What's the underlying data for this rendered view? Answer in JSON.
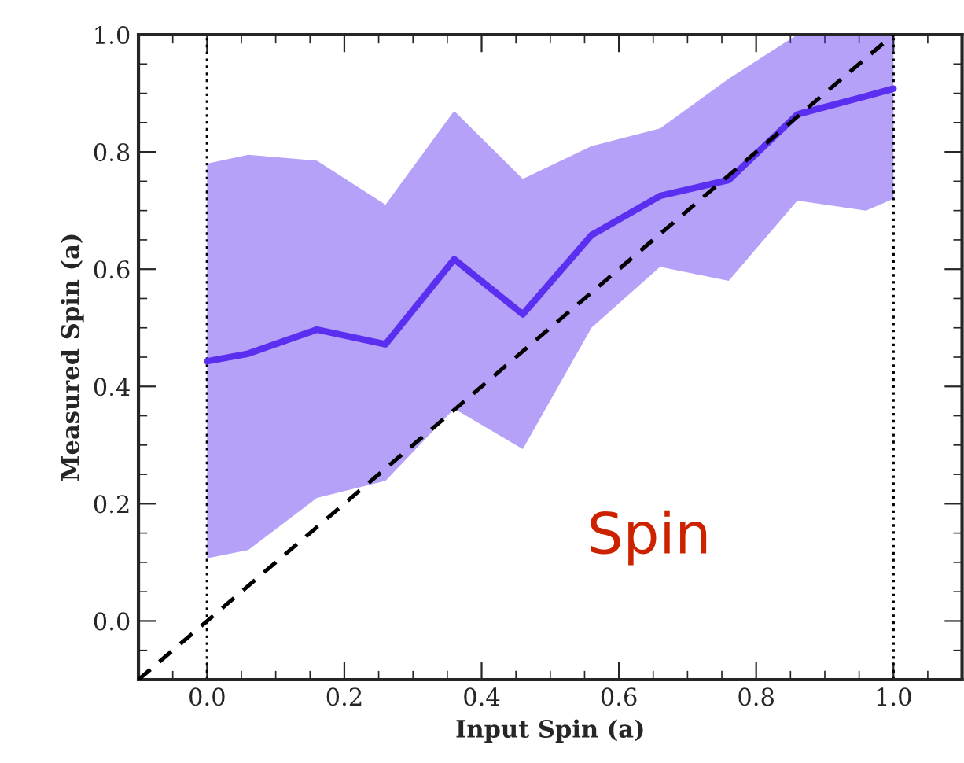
{
  "chart_data": {
    "type": "line",
    "xlabel": "Input Spin (a)",
    "ylabel": "Measured Spin (a)",
    "series": [
      {
        "color": "#5a2ff0",
        "x": [
          0,
          0.06,
          0.16,
          0.26,
          0.36,
          0.46,
          0.56,
          0.66,
          0.76,
          0.86,
          0.96,
          1.0
        ],
        "lower": [
          0.107,
          0.121,
          0.21,
          0.239,
          0.362,
          0.293,
          0.5,
          0.604,
          0.58,
          0.717,
          0.7,
          0.72
        ],
        "upper": [
          0.78,
          0.795,
          0.785,
          0.71,
          0.87,
          0.754,
          0.81,
          0.84,
          0.925,
          1.0,
          1.0,
          1.0
        ],
        "values": [
          0.443,
          0.456,
          0.497,
          0.472,
          0.617,
          0.523,
          0.658,
          0.725,
          0.752,
          0.864,
          0.895,
          0.908
        ]
      },
      {
        "color": "#000000",
        "line_style": "dashed",
        "x": [
          -0.1,
          1.0
        ],
        "values": [
          -0.1,
          1.0
        ]
      }
    ],
    "xlim": [
      -0.1,
      1.1
    ],
    "ylim": [
      -0.1,
      1.0
    ],
    "xticks": [
      {
        "value": 0.0,
        "label": "0.0"
      },
      0.2,
      0.4,
      0.6,
      0.8,
      {
        "value": 1.0,
        "label": "1.0"
      }
    ],
    "yticks": [
      {
        "value": 0.0,
        "label": "0.0"
      },
      0.2,
      0.4,
      0.6,
      0.8,
      {
        "value": 1.0,
        "label": "1.0"
      }
    ],
    "ref_lines": [
      {
        "axis": "x",
        "value": 0,
        "color": "#000000",
        "line_style": "dotted"
      },
      {
        "axis": "x",
        "value": 1,
        "color": "#000000",
        "line_style": "dotted"
      }
    ],
    "annotations": [
      "Spin"
    ],
    "grid": false,
    "legend": false
  }
}
